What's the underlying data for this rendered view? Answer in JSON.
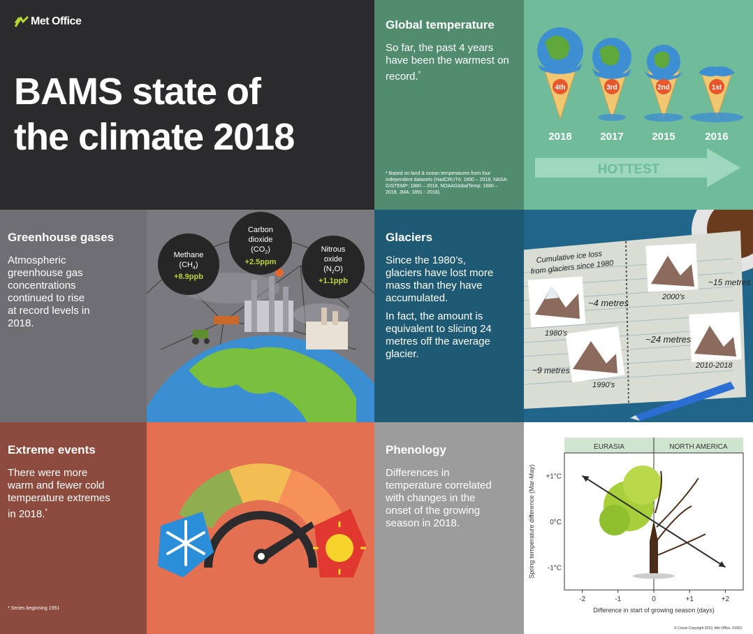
{
  "header": {
    "logo_text": "Met Office",
    "title_line1": "BAMS state of",
    "title_line2": "the climate 2018"
  },
  "global_temperature": {
    "heading": "Global temperature",
    "text": "So far, the past 4 years have been the warmest on record.",
    "asterisk": "*",
    "footnote": "* Based on land & ocean temperatures from four independent datasets (HadCRUT4: 1850 – 2018, NASA-GISTEMP: 1880 – 2018, NOAAGlobalTemp: 1880 – 2018, JMA: 1891 - 2018).",
    "arrow_label": "HOTTEST",
    "cones": [
      {
        "rank": "4th",
        "year": "2018"
      },
      {
        "rank": "3rd",
        "year": "2017"
      },
      {
        "rank": "2nd",
        "year": "2015"
      },
      {
        "rank": "1st",
        "year": "2016"
      }
    ]
  },
  "greenhouse": {
    "heading": "Greenhouse gases",
    "text": "Atmospheric greenhouse gas concentrations continued to rise at record levels in 2018.",
    "bubbles": {
      "methane": {
        "l1": "Methane",
        "l2": "(CH",
        "sub": "4",
        "l2end": ")",
        "value": "+8.9ppb"
      },
      "co2": {
        "l1": "Carbon",
        "l2": "dioxide",
        "l3": "(CO",
        "sub": "2",
        "l3end": ")",
        "value": "+2.5ppm"
      },
      "n2o": {
        "l1": "Nitrous",
        "l2": "oxide",
        "l3": "(N",
        "sub": "2",
        "l3end": "O)",
        "value": "+1.1ppb"
      }
    }
  },
  "glaciers": {
    "heading": "Glaciers",
    "text1": "Since the 1980’s, glaciers have lost more mass than they have accumulated.",
    "text2": "In fact, the amount is equivalent to slicing 24 metres off the average glacier.",
    "notebook_title_1": "Cumulative ice loss",
    "notebook_title_2": "from glaciers since 1980",
    "labels": {
      "m4": "~4 metres",
      "m9": "~9 metres",
      "m15": "~15 metres",
      "m24": "~24 metres",
      "d1980": "1980’s",
      "d1990": "1990’s",
      "d2000": "2000’s",
      "d2010": "2010-2018"
    }
  },
  "extreme": {
    "heading": "Extreme events",
    "text": "There were more warm and fewer cold temperature extremes in 2018.",
    "asterisk": "*",
    "footnote": "* Series beginning 1951"
  },
  "phenology": {
    "heading": "Phenology",
    "text": "Differences in temperature correlated with changes in the onset of the growing season in 2018.",
    "copyright": "© Crown Copyright 2019, Met Office. 01063"
  },
  "chart_data": {
    "type": "scatter",
    "title": "",
    "panels": [
      "EURASIA",
      "NORTH AMERICA"
    ],
    "xlabel": "Difference in start of growing season (days)",
    "ylabel": "Spring temperature difference (Mar-May)",
    "xticks": [
      "-2",
      "-1",
      "0",
      "+1",
      "+2"
    ],
    "yticks": [
      "+1°C",
      "0°C",
      "-1°C"
    ],
    "xlim": [
      -2.5,
      2.5
    ],
    "ylim": [
      -1.5,
      1.5
    ],
    "trend_arrow": {
      "x": [
        -2,
        2
      ],
      "y": [
        1,
        -1
      ]
    }
  },
  "colors": {
    "dark": "#2b2b2d",
    "green_dark": "#528c6f",
    "green_light": "#6fbb9a",
    "grey": "#6f6f73",
    "blue": "#1e5a73",
    "brown": "#8c4b3c",
    "orange": "#e37151",
    "phen_grey": "#9c9c9c",
    "accent_green": "#b9d532"
  }
}
